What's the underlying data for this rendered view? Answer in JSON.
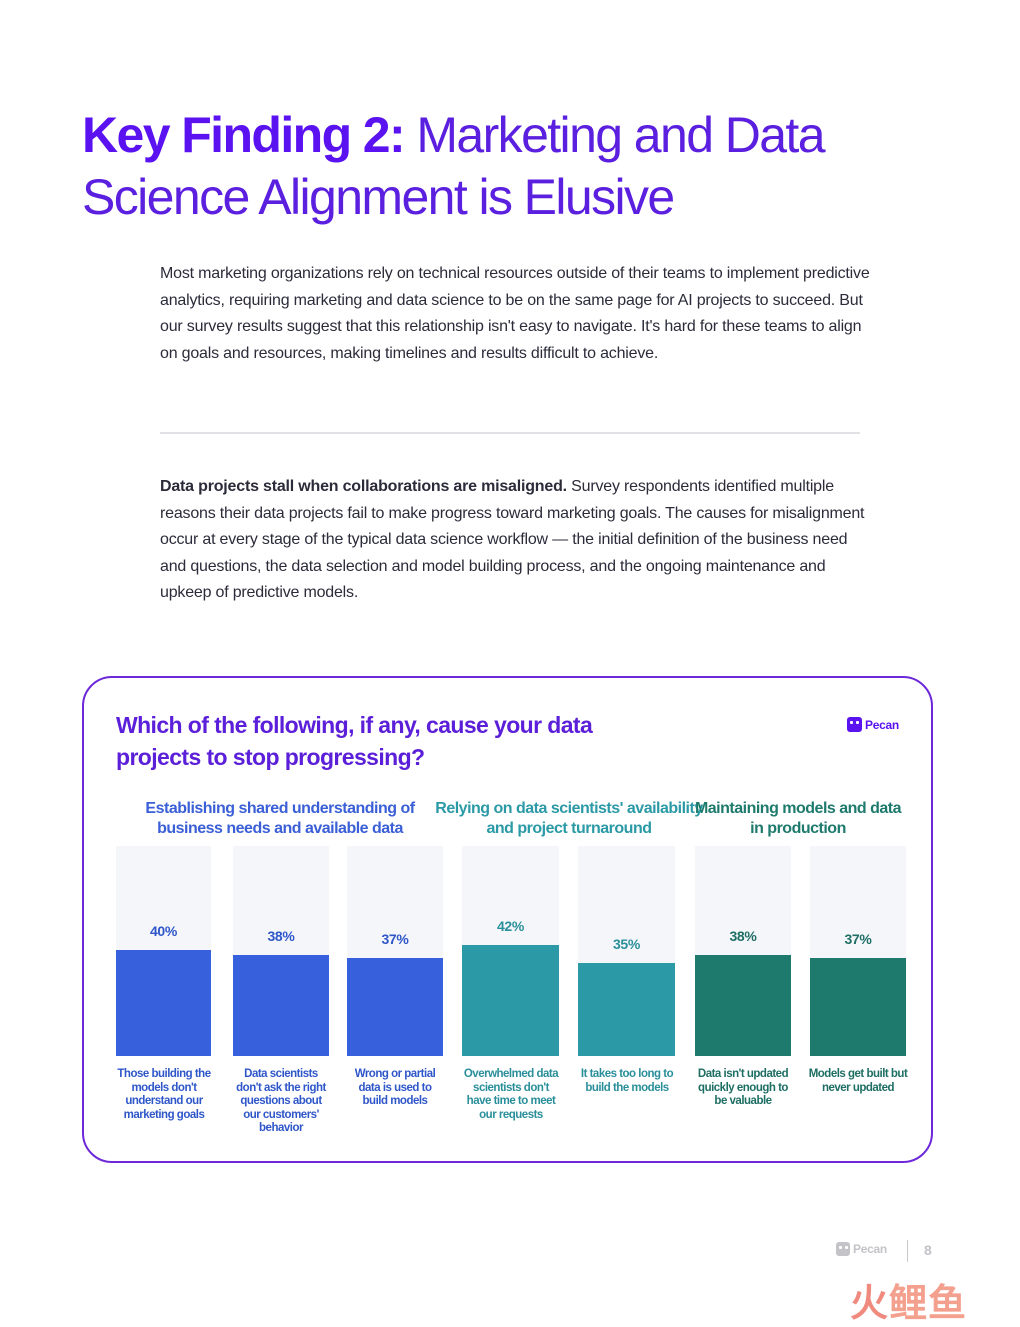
{
  "header": {
    "title_bold": "Key Finding 2:",
    "title_rest": " Marketing and Data Science Alignment is Elusive"
  },
  "intro": "Most marketing organizations rely on technical resources outside of their teams to implement predictive analytics, requiring marketing and data science to be on the same page for AI projects to succeed. But our survey results suggest that this relationship isn't easy to navigate. It's hard for these teams to align on goals and resources, making timelines and results difficult to achieve.",
  "section": {
    "lead": "Data projects stall when collaborations are misaligned.",
    "body": " Survey respondents identified multiple reasons their data projects fail to make progress toward marketing goals. The causes for misalignment occur at every stage of the typical data science workflow — the initial definition of the business need and questions, the data selection and model building process, and the ongoing maintenance and upkeep of predictive models."
  },
  "brand": {
    "name": "Pecan"
  },
  "chart_data": {
    "type": "bar",
    "title": "Which of the following, if any, cause your data projects to stop progressing?",
    "ylim": [
      0,
      100
    ],
    "groups": [
      {
        "name": "Establishing shared understanding of business needs and available data",
        "color": "#3a5fd6",
        "bars": [
          0,
          1,
          2
        ]
      },
      {
        "name": "Relying on data scientists' availability and project turnaround",
        "color": "#2b9aa6",
        "bars": [
          3,
          4
        ]
      },
      {
        "name": "Maintaining models and data in production",
        "color": "#1e7a6d",
        "bars": [
          5,
          6
        ]
      }
    ],
    "categories": [
      "Those building the models don't understand our marketing goals",
      "Data scientists don't ask the right questions about our customers' behavior",
      "Wrong or partial data is used to build models",
      "Overwhelmed data scientists don't have time to meet our requests",
      "It takes too long to build the models",
      "Data isn't updated quickly enough to be valuable",
      "Models get built but never updated"
    ],
    "values": [
      40,
      38,
      37,
      42,
      35,
      38,
      37
    ],
    "value_labels": [
      "40%",
      "38%",
      "37%",
      "42%",
      "35%",
      "38%",
      "37%"
    ],
    "bar_colors": [
      "#3761dc",
      "#3761dc",
      "#3761dc",
      "#2c9aa6",
      "#2c9aa6",
      "#1f7a6e",
      "#1f7a6e"
    ],
    "label_colors": [
      "#2f57c9",
      "#2f57c9",
      "#2f57c9",
      "#2a8f9a",
      "#2a8f9a",
      "#1e6e64",
      "#1e6e64"
    ],
    "grid": false,
    "legend": "none"
  },
  "footer": {
    "brand": "Pecan",
    "page": "8"
  },
  "watermark": {
    "part1": "火",
    "part2": "鲤鱼"
  },
  "colors": {
    "accent": "#5b12f0",
    "track": "#f4f6fa"
  }
}
